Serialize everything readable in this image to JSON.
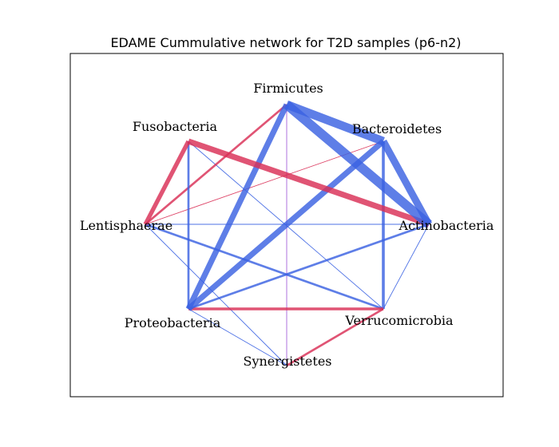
{
  "title": "EDAME Cummulative network for T2D samples (p6-n2)",
  "colors": {
    "positive": "#3a62e2",
    "negative": "#d92e55",
    "neutral": "#9b4fd6"
  },
  "nodes": [
    {
      "id": "Firmicutes",
      "label": "Firmicutes"
    },
    {
      "id": "Bacteroidetes",
      "label": "Bacteroidetes"
    },
    {
      "id": "Actinobacteria",
      "label": "Actinobacteria"
    },
    {
      "id": "Verrucomicrobia",
      "label": "Verrucomicrobia"
    },
    {
      "id": "Synergistetes",
      "label": "Synergistetes"
    },
    {
      "id": "Proteobacteria",
      "label": "Proteobacteria"
    },
    {
      "id": "Lentisphaerae",
      "label": "Lentisphaerae"
    },
    {
      "id": "Fusobacteria",
      "label": "Fusobacteria"
    }
  ],
  "edges": [
    {
      "source": "Firmicutes",
      "target": "Actinobacteria",
      "sign": "positive",
      "weight": 13
    },
    {
      "source": "Firmicutes",
      "target": "Bacteroidetes",
      "sign": "positive",
      "weight": 12
    },
    {
      "source": "Firmicutes",
      "target": "Proteobacteria",
      "sign": "positive",
      "weight": 8
    },
    {
      "source": "Firmicutes",
      "target": "Lentisphaerae",
      "sign": "negative",
      "weight": 3
    },
    {
      "source": "Firmicutes",
      "target": "Synergistetes",
      "sign": "neutral",
      "weight": 1
    },
    {
      "source": "Bacteroidetes",
      "target": "Actinobacteria",
      "sign": "positive",
      "weight": 10
    },
    {
      "source": "Bacteroidetes",
      "target": "Proteobacteria",
      "sign": "positive",
      "weight": 8
    },
    {
      "source": "Bacteroidetes",
      "target": "Verrucomicrobia",
      "sign": "positive",
      "weight": 4
    },
    {
      "source": "Bacteroidetes",
      "target": "Lentisphaerae",
      "sign": "negative",
      "weight": 1
    },
    {
      "source": "Fusobacteria",
      "target": "Actinobacteria",
      "sign": "negative",
      "weight": 8
    },
    {
      "source": "Fusobacteria",
      "target": "Lentisphaerae",
      "sign": "negative",
      "weight": 6
    },
    {
      "source": "Fusobacteria",
      "target": "Proteobacteria",
      "sign": "positive",
      "weight": 3
    },
    {
      "source": "Fusobacteria",
      "target": "Verrucomicrobia",
      "sign": "positive",
      "weight": 1
    },
    {
      "source": "Lentisphaerae",
      "target": "Actinobacteria",
      "sign": "positive",
      "weight": 1
    },
    {
      "source": "Lentisphaerae",
      "target": "Verrucomicrobia",
      "sign": "positive",
      "weight": 3
    },
    {
      "source": "Lentisphaerae",
      "target": "Synergistetes",
      "sign": "positive",
      "weight": 1
    },
    {
      "source": "Proteobacteria",
      "target": "Actinobacteria",
      "sign": "positive",
      "weight": 3
    },
    {
      "source": "Proteobacteria",
      "target": "Verrucomicrobia",
      "sign": "negative",
      "weight": 4
    },
    {
      "source": "Proteobacteria",
      "target": "Synergistetes",
      "sign": "positive",
      "weight": 1
    },
    {
      "source": "Verrucomicrobia",
      "target": "Synergistetes",
      "sign": "negative",
      "weight": 3
    },
    {
      "source": "Verrucomicrobia",
      "target": "Actinobacteria",
      "sign": "positive",
      "weight": 1
    }
  ]
}
